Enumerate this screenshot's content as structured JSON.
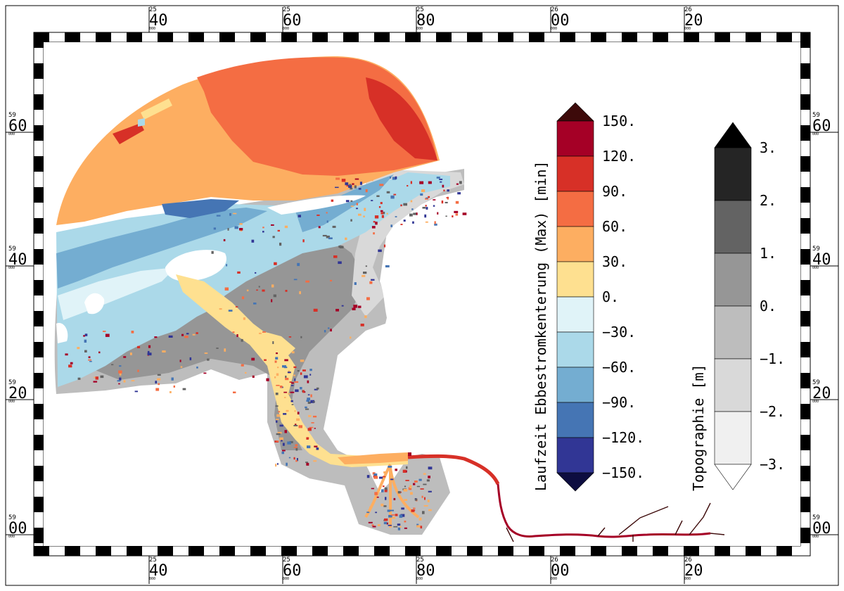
{
  "frame": {
    "top_ticks": [
      {
        "sup": "25",
        "main": "40",
        "sub": "000"
      },
      {
        "sup": "25",
        "main": "60",
        "sub": "000"
      },
      {
        "sup": "25",
        "main": "80",
        "sub": "000"
      },
      {
        "sup": "26",
        "main": "00",
        "sub": "000"
      },
      {
        "sup": "26",
        "main": "20",
        "sub": "000"
      }
    ],
    "bottom_ticks": [
      {
        "sup": "25",
        "main": "40",
        "sub": "000"
      },
      {
        "sup": "25",
        "main": "60",
        "sub": "000"
      },
      {
        "sup": "25",
        "main": "80",
        "sub": "000"
      },
      {
        "sup": "26",
        "main": "00",
        "sub": "000"
      },
      {
        "sup": "26",
        "main": "20",
        "sub": "000"
      }
    ],
    "side_ticks": [
      {
        "sup": "59",
        "main": "60",
        "sub": "000"
      },
      {
        "sup": "59",
        "main": "40",
        "sub": "000"
      },
      {
        "sup": "59",
        "main": "20",
        "sub": "000"
      },
      {
        "sup": "59",
        "main": "00",
        "sub": "000"
      }
    ]
  },
  "legend_travel": {
    "title": "Laufzeit Ebbestromkenterung (Max) [min]",
    "labels": [
      "150.",
      "120.",
      "90.",
      "60.",
      "30.",
      "0.",
      "−30.",
      "−60.",
      "−90.",
      "−120.",
      "−150."
    ],
    "colors": [
      "#a50026",
      "#d73027",
      "#f46d43",
      "#fdae61",
      "#fee090",
      "#e0f3f8",
      "#abd9e9",
      "#74add1",
      "#4575b4",
      "#313695"
    ],
    "over_color": "#3d0a0a",
    "under_color": "#0d0d40"
  },
  "legend_topo": {
    "title": "Topographie [m]",
    "labels": [
      "3.",
      "2.",
      "1.",
      "0.",
      "−1.",
      "−2.",
      "−3."
    ],
    "colors": [
      "#252525",
      "#636363",
      "#969696",
      "#bdbdbd",
      "#d9d9d9",
      "#f0f0f0"
    ],
    "over_color": "#000000",
    "under_color": "#ffffff"
  },
  "map_colors": {
    "sea_orange": "#f46d43",
    "sea_light_orange": "#fdae61",
    "sea_red": "#d73027",
    "channel_light_blue": "#abd9e9",
    "channel_pale": "#e0f3f8",
    "channel_blue": "#74add1",
    "channel_dark": "#4575b4",
    "sand_yellow": "#fee090",
    "flat_grey": "#969696",
    "flat_light": "#bdbdbd",
    "river_red": "#a50026"
  }
}
